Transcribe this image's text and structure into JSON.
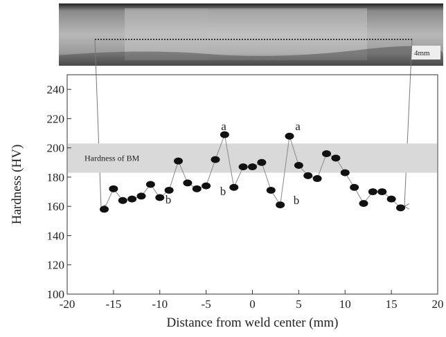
{
  "chart_data": {
    "type": "line",
    "xlabel": "Distance from weld center (mm)",
    "ylabel": "Hardness (HV)",
    "x": [
      -16,
      -15,
      -14,
      -13,
      -12,
      -11,
      -10,
      -9,
      -8,
      -7,
      -6,
      -5,
      -4,
      -3,
      -2,
      -1,
      0,
      1,
      2,
      3,
      4,
      5,
      6,
      7,
      8,
      9,
      10,
      11,
      12,
      13,
      14,
      15,
      16
    ],
    "series": [
      {
        "color": "#111111",
        "values": [
          158,
          172,
          164,
          165,
          167,
          175,
          166,
          171,
          191,
          176,
          172,
          174,
          192,
          209,
          173,
          187,
          187,
          190,
          171,
          161,
          208,
          188,
          181,
          179,
          196,
          193,
          183,
          173,
          162,
          170,
          170,
          165,
          159
        ]
      }
    ],
    "xlim": [
      -20,
      20
    ],
    "xticks": [
      -20,
      -15,
      -10,
      -5,
      0,
      5,
      10,
      15,
      20
    ],
    "ylim": [
      100,
      250
    ],
    "yticks": [
      100,
      120,
      140,
      160,
      180,
      200,
      220,
      240
    ],
    "reference_band": {
      "label": "Hardness of BM",
      "range": [
        183,
        203
      ],
      "color": "#d9d9d9"
    },
    "annotations": [
      "a",
      "a",
      "b",
      "b",
      "b"
    ],
    "image_scale_label": "4mm"
  }
}
